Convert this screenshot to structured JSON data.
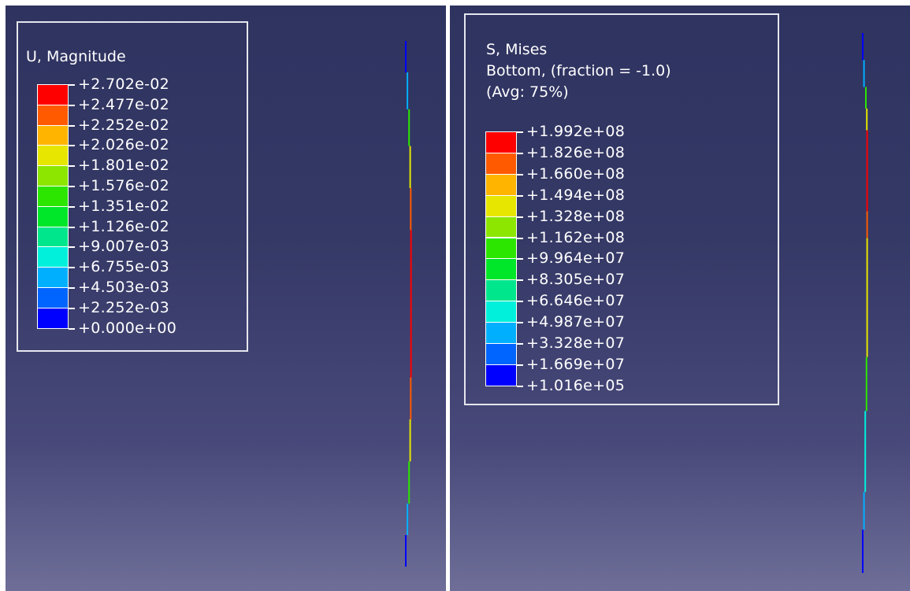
{
  "panels": [
    {
      "legend": {
        "title_lines": [
          "U, Magnitude"
        ],
        "ticks": [
          "+2.702e-02",
          "+2.477e-02",
          "+2.252e-02",
          "+2.026e-02",
          "+1.801e-02",
          "+1.576e-02",
          "+1.351e-02",
          "+1.126e-02",
          "+9.007e-03",
          "+6.755e-03",
          "+4.503e-03",
          "+2.252e-03",
          "+0.000e+00"
        ],
        "colors": [
          "#ff0000",
          "#ff5a00",
          "#ffb400",
          "#e6e600",
          "#8ce600",
          "#2ce600",
          "#00e628",
          "#00e68c",
          "#00f0dc",
          "#00b0ff",
          "#0064ff",
          "#0000ff"
        ]
      },
      "beam_profile": [
        {
          "from": 0.0,
          "to": 0.06,
          "color": "#0000ff",
          "offset": 0.0
        },
        {
          "from": 0.06,
          "to": 0.13,
          "color": "#00b0ff",
          "offset": 0.06
        },
        {
          "from": 0.13,
          "to": 0.2,
          "color": "#2ce600",
          "offset": 0.12
        },
        {
          "from": 0.2,
          "to": 0.28,
          "color": "#e6e600",
          "offset": 0.16
        },
        {
          "from": 0.28,
          "to": 0.36,
          "color": "#ff5a00",
          "offset": 0.18
        },
        {
          "from": 0.36,
          "to": 0.64,
          "color": "#ff0000",
          "offset": 0.19
        },
        {
          "from": 0.64,
          "to": 0.72,
          "color": "#ff5a00",
          "offset": 0.18
        },
        {
          "from": 0.72,
          "to": 0.8,
          "color": "#e6e600",
          "offset": 0.16
        },
        {
          "from": 0.8,
          "to": 0.88,
          "color": "#2ce600",
          "offset": 0.12
        },
        {
          "from": 0.88,
          "to": 0.94,
          "color": "#00b0ff",
          "offset": 0.06
        },
        {
          "from": 0.94,
          "to": 1.0,
          "color": "#0000ff",
          "offset": 0.0
        }
      ]
    },
    {
      "legend": {
        "title_lines": [
          "S, Mises",
          "Bottom, (fraction = -1.0)",
          "(Avg: 75%)"
        ],
        "ticks": [
          "+1.992e+08",
          "+1.826e+08",
          "+1.660e+08",
          "+1.494e+08",
          "+1.328e+08",
          "+1.162e+08",
          "+9.964e+07",
          "+8.305e+07",
          "+6.646e+07",
          "+4.987e+07",
          "+3.328e+07",
          "+1.669e+07",
          "+1.016e+05"
        ],
        "colors": [
          "#ff0000",
          "#ff5a00",
          "#ffb400",
          "#e6e600",
          "#8ce600",
          "#2ce600",
          "#00e628",
          "#00e68c",
          "#00f0dc",
          "#00b0ff",
          "#0064ff",
          "#0000ff"
        ]
      },
      "beam_profile": [
        {
          "from": 0.0,
          "to": 0.05,
          "color": "#0000ff",
          "offset": 0.0
        },
        {
          "from": 0.05,
          "to": 0.1,
          "color": "#00b0ff",
          "offset": 0.04
        },
        {
          "from": 0.1,
          "to": 0.14,
          "color": "#2ce600",
          "offset": 0.1
        },
        {
          "from": 0.14,
          "to": 0.18,
          "color": "#e6e600",
          "offset": 0.13
        },
        {
          "from": 0.18,
          "to": 0.33,
          "color": "#ff0000",
          "offset": 0.14
        },
        {
          "from": 0.33,
          "to": 0.38,
          "color": "#ff5a00",
          "offset": 0.14
        },
        {
          "from": 0.38,
          "to": 0.6,
          "color": "#e6e600",
          "offset": 0.14
        },
        {
          "from": 0.6,
          "to": 0.7,
          "color": "#2ce600",
          "offset": 0.12
        },
        {
          "from": 0.7,
          "to": 0.85,
          "color": "#00f0dc",
          "offset": 0.08
        },
        {
          "from": 0.85,
          "to": 0.92,
          "color": "#00b0ff",
          "offset": 0.04
        },
        {
          "from": 0.92,
          "to": 1.0,
          "color": "#0000ff",
          "offset": 0.0
        }
      ]
    }
  ]
}
